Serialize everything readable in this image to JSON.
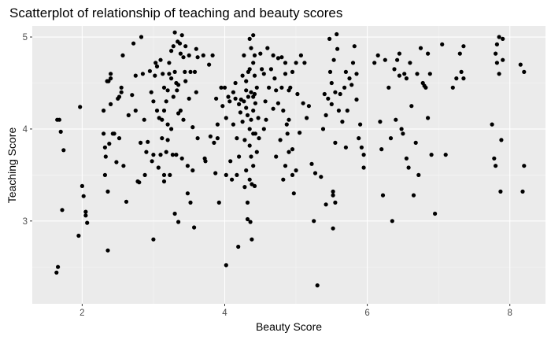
{
  "chart_data": {
    "type": "scatter",
    "title": "Scatterplot of relationship of teaching and beauty scores",
    "xlabel": "Beauty Score",
    "ylabel": "Teaching Score",
    "xlim": [
      1.3,
      8.5
    ],
    "ylim": [
      2.1,
      5.12
    ],
    "x_ticks": [
      2,
      4,
      6,
      8
    ],
    "y_ticks": [
      3,
      4,
      5
    ],
    "x_tick_labels": [
      "2",
      "4",
      "6",
      "8"
    ],
    "y_tick_labels": [
      "3",
      "4",
      "5"
    ],
    "grid": true,
    "legend": "none",
    "colors": {
      "panel": "#ebebeb",
      "grid_major": "#ffffff",
      "grid_minor": "#f5f5f5",
      "point": "#000000"
    },
    "points": [
      [
        1.65,
        4.1
      ],
      [
        1.68,
        4.1
      ],
      [
        1.7,
        3.97
      ],
      [
        1.72,
        3.12
      ],
      [
        1.74,
        3.77
      ],
      [
        1.66,
        2.5
      ],
      [
        1.64,
        2.44
      ],
      [
        1.97,
        4.24
      ],
      [
        1.95,
        2.84
      ],
      [
        2.0,
        3.38
      ],
      [
        2.02,
        3.27
      ],
      [
        2.05,
        3.1
      ],
      [
        2.07,
        2.98
      ],
      [
        2.05,
        3.06
      ],
      [
        2.3,
        4.2
      ],
      [
        2.3,
        3.95
      ],
      [
        2.32,
        3.8
      ],
      [
        2.33,
        3.7
      ],
      [
        2.32,
        3.5
      ],
      [
        2.35,
        4.52
      ],
      [
        2.37,
        4.52
      ],
      [
        2.4,
        4.55
      ],
      [
        2.4,
        4.6
      ],
      [
        2.4,
        4.27
      ],
      [
        2.43,
        3.95
      ],
      [
        2.38,
        3.84
      ],
      [
        2.36,
        3.32
      ],
      [
        2.36,
        2.68
      ],
      [
        2.45,
        3.95
      ],
      [
        2.48,
        3.64
      ],
      [
        2.5,
        4.33
      ],
      [
        2.52,
        4.35
      ],
      [
        2.55,
        4.4
      ],
      [
        2.55,
        4.45
      ],
      [
        2.57,
        4.8
      ],
      [
        2.58,
        3.6
      ],
      [
        2.62,
        3.21
      ],
      [
        2.52,
        3.9
      ],
      [
        2.65,
        4.15
      ],
      [
        2.7,
        4.37
      ],
      [
        2.72,
        4.93
      ],
      [
        2.75,
        4.58
      ],
      [
        2.78,
        3.43
      ],
      [
        2.75,
        4.2
      ],
      [
        2.8,
        3.42
      ],
      [
        2.82,
        3.85
      ],
      [
        2.83,
        5.0
      ],
      [
        2.85,
        4.6
      ],
      [
        2.87,
        4.1
      ],
      [
        2.88,
        3.5
      ],
      [
        2.9,
        3.75
      ],
      [
        2.92,
        3.86
      ],
      [
        2.95,
        4.63
      ],
      [
        2.97,
        4.4
      ],
      [
        2.98,
        3.65
      ],
      [
        3.0,
        4.3
      ],
      [
        3.0,
        2.8
      ],
      [
        3.0,
        3.72
      ],
      [
        3.02,
        4.58
      ],
      [
        3.03,
        4.72
      ],
      [
        3.05,
        4.68
      ],
      [
        3.05,
        4.2
      ],
      [
        3.07,
        3.58
      ],
      [
        3.08,
        4.12
      ],
      [
        3.1,
        3.72
      ],
      [
        3.1,
        4.75
      ],
      [
        3.12,
        4.1
      ],
      [
        3.12,
        3.9
      ],
      [
        3.13,
        4.6
      ],
      [
        3.15,
        3.5
      ],
      [
        3.15,
        4.2
      ],
      [
        3.15,
        4.45
      ],
      [
        3.15,
        3.43
      ],
      [
        3.18,
        3.75
      ],
      [
        3.18,
        4.3
      ],
      [
        3.2,
        4.42
      ],
      [
        3.2,
        4.05
      ],
      [
        3.2,
        3.88
      ],
      [
        3.22,
        4.6
      ],
      [
        3.22,
        4.72
      ],
      [
        3.23,
        3.5
      ],
      [
        3.25,
        4.55
      ],
      [
        3.25,
        4.85
      ],
      [
        3.25,
        4.0
      ],
      [
        3.27,
        3.72
      ],
      [
        3.28,
        4.35
      ],
      [
        3.28,
        4.9
      ],
      [
        3.3,
        5.05
      ],
      [
        3.3,
        4.62
      ],
      [
        3.3,
        3.08
      ],
      [
        3.32,
        3.72
      ],
      [
        3.32,
        4.5
      ],
      [
        3.33,
        4.42
      ],
      [
        3.34,
        4.95
      ],
      [
        3.35,
        4.48
      ],
      [
        3.35,
        4.17
      ],
      [
        3.35,
        2.99
      ],
      [
        3.37,
        4.93
      ],
      [
        3.38,
        4.82
      ],
      [
        3.38,
        4.2
      ],
      [
        3.4,
        3.68
      ],
      [
        3.4,
        5.02
      ],
      [
        3.42,
        4.78
      ],
      [
        3.42,
        4.1
      ],
      [
        3.44,
        4.62
      ],
      [
        3.45,
        4.52
      ],
      [
        3.45,
        4.9
      ],
      [
        3.48,
        3.6
      ],
      [
        3.48,
        3.3
      ],
      [
        3.5,
        4.8
      ],
      [
        3.5,
        4.33
      ],
      [
        3.52,
        4.62
      ],
      [
        3.52,
        3.2
      ],
      [
        3.55,
        3.55
      ],
      [
        3.55,
        4.02
      ],
      [
        3.57,
        2.93
      ],
      [
        3.58,
        4.62
      ],
      [
        3.6,
        4.4
      ],
      [
        3.6,
        4.87
      ],
      [
        3.62,
        4.78
      ],
      [
        3.62,
        3.9
      ],
      [
        3.7,
        4.8
      ],
      [
        3.72,
        3.68
      ],
      [
        3.73,
        3.65
      ],
      [
        3.78,
        4.7
      ],
      [
        3.8,
        3.92
      ],
      [
        3.83,
        4.8
      ],
      [
        3.85,
        3.85
      ],
      [
        3.87,
        3.52
      ],
      [
        3.88,
        4.33
      ],
      [
        3.9,
        4.05
      ],
      [
        3.9,
        3.9
      ],
      [
        3.92,
        3.2
      ],
      [
        3.95,
        4.45
      ],
      [
        3.97,
        4.25
      ],
      [
        4.0,
        4.45
      ],
      [
        4.02,
        4.12
      ],
      [
        4.02,
        3.5
      ],
      [
        4.02,
        2.52
      ],
      [
        4.05,
        4.35
      ],
      [
        4.07,
        4.3
      ],
      [
        4.08,
        3.65
      ],
      [
        4.1,
        3.45
      ],
      [
        4.12,
        4.4
      ],
      [
        4.12,
        4.05
      ],
      [
        4.15,
        4.33
      ],
      [
        4.15,
        4.5
      ],
      [
        4.17,
        3.9
      ],
      [
        4.17,
        3.5
      ],
      [
        4.19,
        2.72
      ],
      [
        4.2,
        4.27
      ],
      [
        4.2,
        3.7
      ],
      [
        4.22,
        4.18
      ],
      [
        4.23,
        4.32
      ],
      [
        4.25,
        4.58
      ],
      [
        4.25,
        4.08
      ],
      [
        4.27,
        4.3
      ],
      [
        4.27,
        4.8
      ],
      [
        4.28,
        3.88
      ],
      [
        4.28,
        3.37
      ],
      [
        4.3,
        4.42
      ],
      [
        4.3,
        4.23
      ],
      [
        4.3,
        4.52
      ],
      [
        4.3,
        3.55
      ],
      [
        4.32,
        4.15
      ],
      [
        4.32,
        3.2
      ],
      [
        4.32,
        3.02
      ],
      [
        4.33,
        4.62
      ],
      [
        4.33,
        4.35
      ],
      [
        4.35,
        4.98
      ],
      [
        4.35,
        4.65
      ],
      [
        4.35,
        4.0
      ],
      [
        4.35,
        3.82
      ],
      [
        4.35,
        3.45
      ],
      [
        4.36,
        2.99
      ],
      [
        4.37,
        4.88
      ],
      [
        4.37,
        4.4
      ],
      [
        4.37,
        4.1
      ],
      [
        4.37,
        3.7
      ],
      [
        4.38,
        3.4
      ],
      [
        4.38,
        2.8
      ],
      [
        4.4,
        5.02
      ],
      [
        4.4,
        4.35
      ],
      [
        4.4,
        4.72
      ],
      [
        4.4,
        4.2
      ],
      [
        4.4,
        3.95
      ],
      [
        4.4,
        3.6
      ],
      [
        4.42,
        4.58
      ],
      [
        4.42,
        4.38
      ],
      [
        4.42,
        4.8
      ],
      [
        4.42,
        3.38
      ],
      [
        4.43,
        4.28
      ],
      [
        4.43,
        3.95
      ],
      [
        4.45,
        4.45
      ],
      [
        4.45,
        3.75
      ],
      [
        4.47,
        4.12
      ],
      [
        4.48,
        3.9
      ],
      [
        4.5,
        4.82
      ],
      [
        4.52,
        4.65
      ],
      [
        4.55,
        4.0
      ],
      [
        4.55,
        4.6
      ],
      [
        4.57,
        4.3
      ],
      [
        4.58,
        4.1
      ],
      [
        4.6,
        4.88
      ],
      [
        4.62,
        4.45
      ],
      [
        4.65,
        4.65
      ],
      [
        4.68,
        4.8
      ],
      [
        4.68,
        4.22
      ],
      [
        4.7,
        4.55
      ],
      [
        4.72,
        3.7
      ],
      [
        4.72,
        4.42
      ],
      [
        4.75,
        4.77
      ],
      [
        4.75,
        4.28
      ],
      [
        4.78,
        3.88
      ],
      [
        4.8,
        4.78
      ],
      [
        4.8,
        4.45
      ],
      [
        4.82,
        4.2
      ],
      [
        4.82,
        3.45
      ],
      [
        4.85,
        4.6
      ],
      [
        4.85,
        4.72
      ],
      [
        4.85,
        3.6
      ],
      [
        4.87,
        4.05
      ],
      [
        4.88,
        3.95
      ],
      [
        4.9,
        4.42
      ],
      [
        4.9,
        4.1
      ],
      [
        4.9,
        3.75
      ],
      [
        4.92,
        4.45
      ],
      [
        4.95,
        3.5
      ],
      [
        4.95,
        3.78
      ],
      [
        4.95,
        4.62
      ],
      [
        4.97,
        3.3
      ],
      [
        5.0,
        3.55
      ],
      [
        5.0,
        4.72
      ],
      [
        5.02,
        4.38
      ],
      [
        5.05,
        3.96
      ],
      [
        5.07,
        4.8
      ],
      [
        5.1,
        4.28
      ],
      [
        5.12,
        4.72
      ],
      [
        5.15,
        4.12
      ],
      [
        5.18,
        4.25
      ],
      [
        5.22,
        3.62
      ],
      [
        5.25,
        3.0
      ],
      [
        5.27,
        3.52
      ],
      [
        5.3,
        2.3
      ],
      [
        5.35,
        3.48
      ],
      [
        5.38,
        4.0
      ],
      [
        5.4,
        4.38
      ],
      [
        5.42,
        4.15
      ],
      [
        5.42,
        3.18
      ],
      [
        5.45,
        4.33
      ],
      [
        5.47,
        4.98
      ],
      [
        5.48,
        4.62
      ],
      [
        5.5,
        4.5
      ],
      [
        5.5,
        4.27
      ],
      [
        5.52,
        3.32
      ],
      [
        5.52,
        3.28
      ],
      [
        5.52,
        2.92
      ],
      [
        5.53,
        4.75
      ],
      [
        5.55,
        4.4
      ],
      [
        5.55,
        3.85
      ],
      [
        5.55,
        3.2
      ],
      [
        5.57,
        5.03
      ],
      [
        5.58,
        4.87
      ],
      [
        5.6,
        4.2
      ],
      [
        5.62,
        4.38
      ],
      [
        5.65,
        4.08
      ],
      [
        5.68,
        4.45
      ],
      [
        5.7,
        3.8
      ],
      [
        5.7,
        4.62
      ],
      [
        5.72,
        4.2
      ],
      [
        5.75,
        4.55
      ],
      [
        5.78,
        4.48
      ],
      [
        5.8,
        4.72
      ],
      [
        5.82,
        4.9
      ],
      [
        5.85,
        4.6
      ],
      [
        5.85,
        4.32
      ],
      [
        5.88,
        3.9
      ],
      [
        5.9,
        4.05
      ],
      [
        5.92,
        3.8
      ],
      [
        5.95,
        3.72
      ],
      [
        5.95,
        3.58
      ],
      [
        6.1,
        4.72
      ],
      [
        6.15,
        4.8
      ],
      [
        6.18,
        4.08
      ],
      [
        6.2,
        3.78
      ],
      [
        6.22,
        3.28
      ],
      [
        6.25,
        4.75
      ],
      [
        6.3,
        4.45
      ],
      [
        6.33,
        3.9
      ],
      [
        6.35,
        3.0
      ],
      [
        6.38,
        4.65
      ],
      [
        6.4,
        4.1
      ],
      [
        6.42,
        4.75
      ],
      [
        6.45,
        4.82
      ],
      [
        6.45,
        4.58
      ],
      [
        6.48,
        4.0
      ],
      [
        6.5,
        3.95
      ],
      [
        6.52,
        4.6
      ],
      [
        6.55,
        4.55
      ],
      [
        6.55,
        3.68
      ],
      [
        6.58,
        3.58
      ],
      [
        6.6,
        4.72
      ],
      [
        6.62,
        4.25
      ],
      [
        6.65,
        3.28
      ],
      [
        6.68,
        3.85
      ],
      [
        6.7,
        4.6
      ],
      [
        6.72,
        3.5
      ],
      [
        6.75,
        4.88
      ],
      [
        6.78,
        4.5
      ],
      [
        6.8,
        4.47
      ],
      [
        6.82,
        4.45
      ],
      [
        6.85,
        4.12
      ],
      [
        6.85,
        4.82
      ],
      [
        6.88,
        4.6
      ],
      [
        6.9,
        3.72
      ],
      [
        6.95,
        3.08
      ],
      [
        7.05,
        4.92
      ],
      [
        7.1,
        3.72
      ],
      [
        7.2,
        4.45
      ],
      [
        7.25,
        4.55
      ],
      [
        7.3,
        4.82
      ],
      [
        7.32,
        4.62
      ],
      [
        7.35,
        4.55
      ],
      [
        7.35,
        4.9
      ],
      [
        7.75,
        4.05
      ],
      [
        7.78,
        3.68
      ],
      [
        7.8,
        3.6
      ],
      [
        7.8,
        4.82
      ],
      [
        7.82,
        4.72
      ],
      [
        7.82,
        4.92
      ],
      [
        7.85,
        5.0
      ],
      [
        7.85,
        4.6
      ],
      [
        7.87,
        3.32
      ],
      [
        7.88,
        3.88
      ],
      [
        7.9,
        4.98
      ],
      [
        7.9,
        4.75
      ],
      [
        8.15,
        4.7
      ],
      [
        8.18,
        3.32
      ],
      [
        8.2,
        4.62
      ],
      [
        8.2,
        3.6
      ]
    ]
  }
}
